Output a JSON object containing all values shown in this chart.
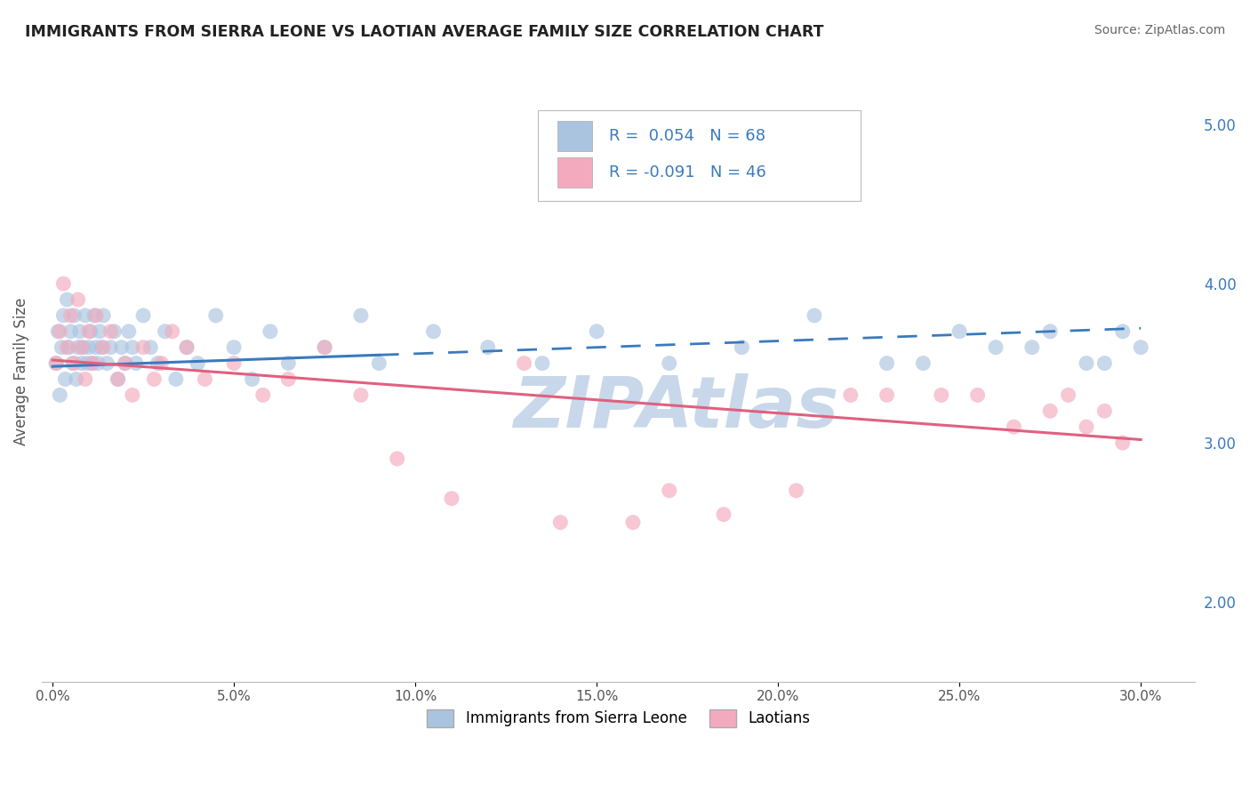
{
  "title": "IMMIGRANTS FROM SIERRA LEONE VS LAOTIAN AVERAGE FAMILY SIZE CORRELATION CHART",
  "source": "Source: ZipAtlas.com",
  "ylabel": "Average Family Size",
  "xlabel_ticks": [
    "0.0%",
    "5.0%",
    "10.0%",
    "15.0%",
    "20.0%",
    "25.0%",
    "30.0%"
  ],
  "xlabel_vals": [
    0.0,
    5.0,
    10.0,
    15.0,
    20.0,
    25.0,
    30.0
  ],
  "ylim": [
    1.5,
    5.4
  ],
  "xlim": [
    -0.3,
    31.5
  ],
  "yticks_right": [
    2.0,
    3.0,
    4.0,
    5.0
  ],
  "blue_R": 0.054,
  "blue_N": 68,
  "pink_R": -0.091,
  "pink_N": 46,
  "blue_color": "#aac4e0",
  "pink_color": "#f4aabe",
  "blue_line_color": "#3a7abf",
  "pink_line_color": "#e06080",
  "watermark": "ZIPAtlas",
  "watermark_color": "#c8d8ea",
  "title_color": "#333333",
  "grid_color": "#cccccc",
  "blue_line_start_y": 3.48,
  "blue_line_end_y": 3.72,
  "blue_line_solid_end_x": 9.0,
  "pink_line_start_y": 3.52,
  "pink_line_end_y": 3.02,
  "blue_scatter_x": [
    0.1,
    0.15,
    0.2,
    0.25,
    0.3,
    0.35,
    0.4,
    0.45,
    0.5,
    0.55,
    0.6,
    0.65,
    0.7,
    0.75,
    0.8,
    0.85,
    0.9,
    0.95,
    1.0,
    1.05,
    1.1,
    1.15,
    1.2,
    1.25,
    1.3,
    1.35,
    1.4,
    1.5,
    1.6,
    1.7,
    1.8,
    1.9,
    2.0,
    2.1,
    2.2,
    2.3,
    2.5,
    2.7,
    2.9,
    3.1,
    3.4,
    3.7,
    4.0,
    4.5,
    5.0,
    5.5,
    6.0,
    6.5,
    7.5,
    8.5,
    9.0,
    10.5,
    12.0,
    13.5,
    15.0,
    17.0,
    19.0,
    21.0,
    23.0,
    25.0,
    27.0,
    29.0,
    29.5,
    30.0,
    28.5,
    27.5,
    26.0,
    24.0
  ],
  "blue_scatter_y": [
    3.5,
    3.7,
    3.3,
    3.6,
    3.8,
    3.4,
    3.9,
    3.6,
    3.7,
    3.5,
    3.8,
    3.4,
    3.6,
    3.7,
    3.5,
    3.6,
    3.8,
    3.5,
    3.6,
    3.7,
    3.5,
    3.8,
    3.6,
    3.5,
    3.7,
    3.6,
    3.8,
    3.5,
    3.6,
    3.7,
    3.4,
    3.6,
    3.5,
    3.7,
    3.6,
    3.5,
    3.8,
    3.6,
    3.5,
    3.7,
    3.4,
    3.6,
    3.5,
    3.8,
    3.6,
    3.4,
    3.7,
    3.5,
    3.6,
    3.8,
    3.5,
    3.7,
    3.6,
    3.5,
    3.7,
    3.5,
    3.6,
    3.8,
    3.5,
    3.7,
    3.6,
    3.5,
    3.7,
    3.6,
    3.5,
    3.7,
    3.6,
    3.5
  ],
  "pink_scatter_x": [
    0.1,
    0.2,
    0.3,
    0.4,
    0.5,
    0.6,
    0.7,
    0.8,
    0.9,
    1.0,
    1.1,
    1.2,
    1.4,
    1.6,
    1.8,
    2.0,
    2.2,
    2.5,
    2.8,
    3.0,
    3.3,
    3.7,
    4.2,
    5.0,
    5.8,
    6.5,
    7.5,
    8.5,
    9.5,
    11.0,
    13.0,
    14.0,
    16.0,
    17.0,
    18.5,
    20.5,
    22.0,
    23.0,
    24.5,
    25.5,
    26.5,
    27.5,
    28.0,
    28.5,
    29.0,
    29.5
  ],
  "pink_scatter_y": [
    3.5,
    3.7,
    4.0,
    3.6,
    3.8,
    3.5,
    3.9,
    3.6,
    3.4,
    3.7,
    3.5,
    3.8,
    3.6,
    3.7,
    3.4,
    3.5,
    3.3,
    3.6,
    3.4,
    3.5,
    3.7,
    3.6,
    3.4,
    3.5,
    3.3,
    3.4,
    3.6,
    3.3,
    2.9,
    2.65,
    3.5,
    2.5,
    2.5,
    2.7,
    2.55,
    2.7,
    3.3,
    3.3,
    3.3,
    3.3,
    3.1,
    3.2,
    3.3,
    3.1,
    3.2,
    3.0
  ]
}
